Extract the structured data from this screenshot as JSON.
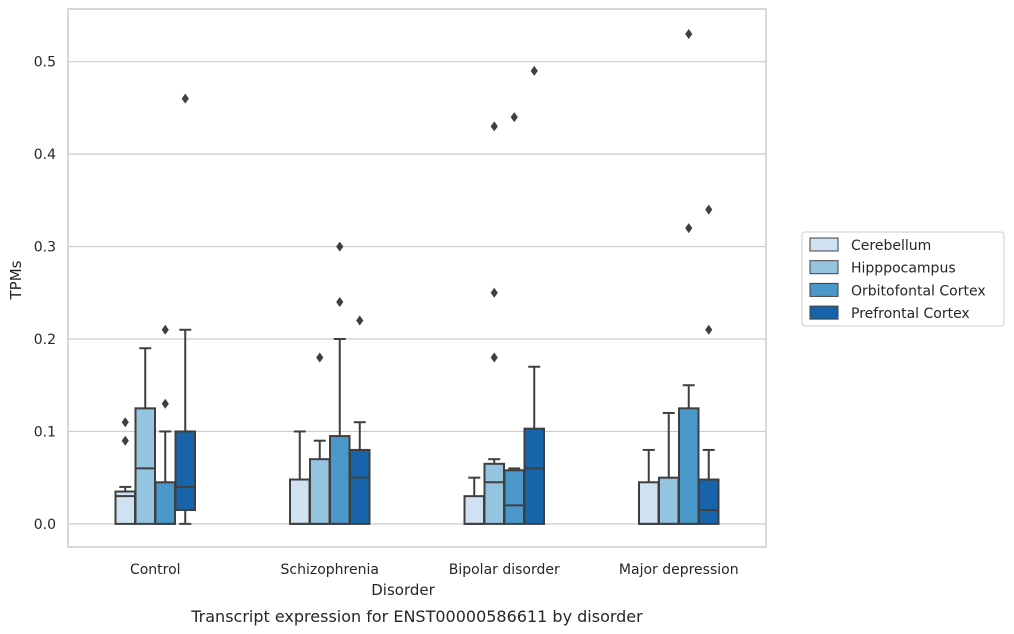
{
  "chart_data": {
    "type": "box",
    "caption": "Transcript expression for ENST00000586611 by disorder",
    "xlabel": "Disorder",
    "ylabel": "TPMs",
    "ylim": [
      -0.025,
      0.557
    ],
    "yticks": [
      0.0,
      0.1,
      0.2,
      0.3,
      0.4,
      0.5
    ],
    "ytick_labels": [
      "0.0",
      "0.1",
      "0.2",
      "0.3",
      "0.4",
      "0.5"
    ],
    "grid": "horizontal",
    "legend_position": "right",
    "categories": [
      "Control",
      "Schizophrenia",
      "Bipolar disorder",
      "Major depression"
    ],
    "series": [
      {
        "name": "Cerebellum",
        "color": "#d0e1f2",
        "boxes": [
          {
            "q1": 0.0,
            "median": 0.03,
            "q3": 0.035,
            "whisker_low": 0.0,
            "whisker_high": 0.04,
            "outliers": [
              0.09,
              0.11
            ]
          },
          {
            "q1": 0.0,
            "median": 0.0,
            "q3": 0.048,
            "whisker_low": 0.0,
            "whisker_high": 0.1,
            "outliers": []
          },
          {
            "q1": 0.0,
            "median": 0.0,
            "q3": 0.03,
            "whisker_low": 0.0,
            "whisker_high": 0.05,
            "outliers": []
          },
          {
            "q1": 0.0,
            "median": 0.0,
            "q3": 0.045,
            "whisker_low": 0.0,
            "whisker_high": 0.08,
            "outliers": []
          }
        ]
      },
      {
        "name": "Hipppocampus",
        "color": "#94c4df",
        "boxes": [
          {
            "q1": 0.0,
            "median": 0.06,
            "q3": 0.125,
            "whisker_low": 0.0,
            "whisker_high": 0.19,
            "outliers": []
          },
          {
            "q1": 0.0,
            "median": 0.0,
            "q3": 0.07,
            "whisker_low": 0.0,
            "whisker_high": 0.09,
            "outliers": [
              0.18
            ]
          },
          {
            "q1": 0.0,
            "median": 0.045,
            "q3": 0.065,
            "whisker_low": 0.0,
            "whisker_high": 0.07,
            "outliers": [
              0.18,
              0.25,
              0.43
            ]
          },
          {
            "q1": 0.0,
            "median": 0.0,
            "q3": 0.05,
            "whisker_low": 0.0,
            "whisker_high": 0.12,
            "outliers": []
          }
        ]
      },
      {
        "name": "Orbitofontal Cortex",
        "color": "#4a98c9",
        "boxes": [
          {
            "q1": 0.0,
            "median": 0.0,
            "q3": 0.045,
            "whisker_low": 0.0,
            "whisker_high": 0.1,
            "outliers": [
              0.13,
              0.21
            ]
          },
          {
            "q1": 0.0,
            "median": 0.0,
            "q3": 0.095,
            "whisker_low": 0.0,
            "whisker_high": 0.2,
            "outliers": [
              0.24,
              0.3
            ]
          },
          {
            "q1": 0.0,
            "median": 0.02,
            "q3": 0.058,
            "whisker_low": 0.0,
            "whisker_high": 0.06,
            "outliers": [
              0.44
            ]
          },
          {
            "q1": 0.0,
            "median": 0.0,
            "q3": 0.125,
            "whisker_low": 0.0,
            "whisker_high": 0.15,
            "outliers": [
              0.32,
              0.53
            ]
          }
        ]
      },
      {
        "name": "Prefrontal Cortex",
        "color": "#1764ab",
        "boxes": [
          {
            "q1": 0.015,
            "median": 0.04,
            "q3": 0.1,
            "whisker_low": 0.0,
            "whisker_high": 0.21,
            "outliers": [
              0.46
            ]
          },
          {
            "q1": 0.0,
            "median": 0.05,
            "q3": 0.08,
            "whisker_low": 0.0,
            "whisker_high": 0.11,
            "outliers": [
              0.22
            ]
          },
          {
            "q1": 0.0,
            "median": 0.06,
            "q3": 0.103,
            "whisker_low": 0.0,
            "whisker_high": 0.17,
            "outliers": [
              0.49
            ]
          },
          {
            "q1": 0.0,
            "median": 0.015,
            "q3": 0.048,
            "whisker_low": 0.0,
            "whisker_high": 0.08,
            "outliers": [
              0.21,
              0.34
            ]
          }
        ]
      }
    ]
  }
}
